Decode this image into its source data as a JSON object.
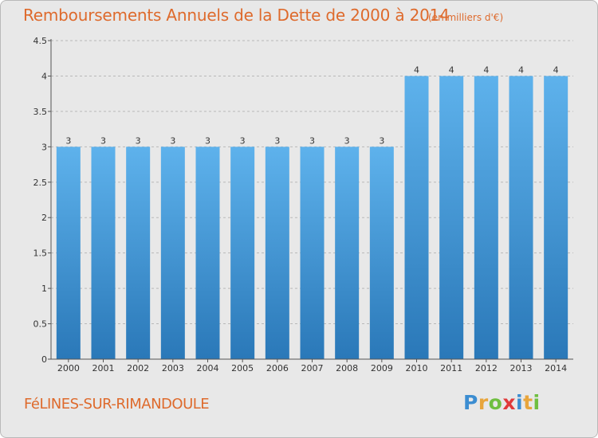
{
  "header": {
    "title": "Remboursements Annuels de la Dette de 2000 à 2014",
    "unit": "(en milliers d'€)"
  },
  "footer": {
    "commune": "FéLINES-SUR-RIMANDOULE",
    "logo_letters": [
      "P",
      "r",
      "o",
      "x",
      "i",
      "t",
      "i"
    ],
    "logo_colors": [
      "#3c8dd1",
      "#e8a53c",
      "#6fbf40",
      "#e03a3a",
      "#3c8dd1",
      "#e8a53c",
      "#6fbf40"
    ]
  },
  "chart_data": {
    "type": "bar",
    "title": "Remboursements Annuels de la Dette de 2000 à 2014",
    "xlabel": "",
    "ylabel": "",
    "categories": [
      "2000",
      "2001",
      "2002",
      "2003",
      "2004",
      "2005",
      "2006",
      "2007",
      "2008",
      "2009",
      "2010",
      "2011",
      "2012",
      "2013",
      "2014"
    ],
    "values": [
      3,
      3,
      3,
      3,
      3,
      3,
      3,
      3,
      3,
      3,
      4,
      4,
      4,
      4,
      4
    ],
    "data_labels": [
      "3",
      "3",
      "3",
      "3",
      "3",
      "3",
      "3",
      "3",
      "3",
      "3",
      "4",
      "4",
      "4",
      "4",
      "4"
    ],
    "ylim": [
      0,
      4.5
    ],
    "y_ticks": [
      0,
      0.5,
      1,
      1.5,
      2,
      2.5,
      3,
      3.5,
      4,
      4.5
    ],
    "y_tick_labels": [
      "0",
      "0.5",
      "1",
      "1.5",
      "2",
      "2.5",
      "3",
      "3.5",
      "4",
      "4.5"
    ],
    "grid": true,
    "colors": {
      "bar_top": "#5eb2ec",
      "bar_bottom": "#2a78b8",
      "axis": "#555555",
      "grid": "#b8b8b8",
      "text": "#333333"
    }
  }
}
